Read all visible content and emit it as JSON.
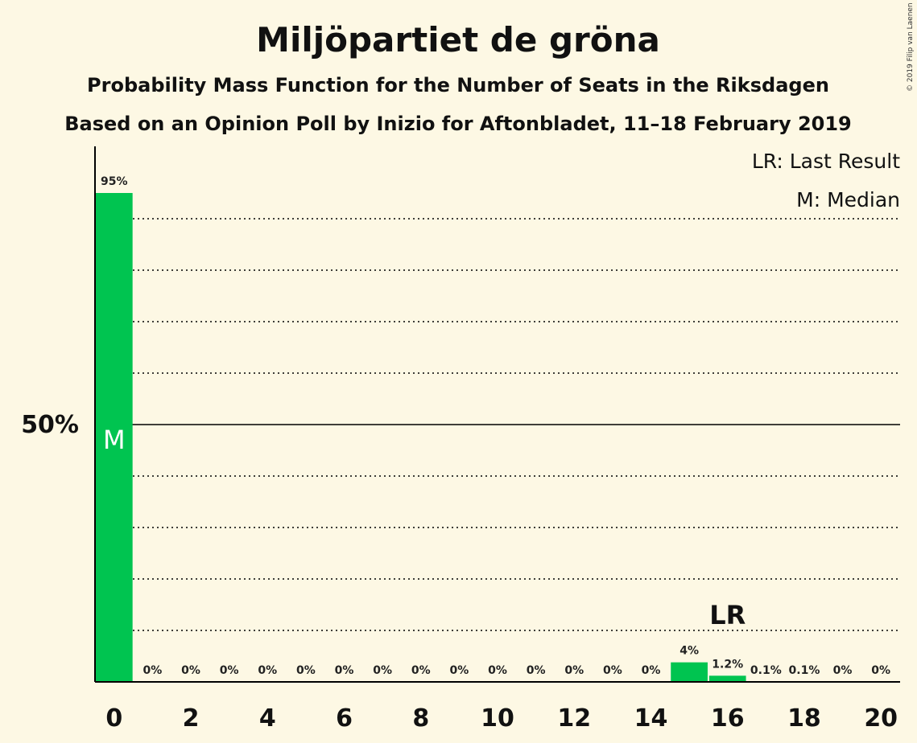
{
  "title": "Miljöpartiet de gröna",
  "subtitle": "Probability Mass Function for the Number of Seats in the Riksdagen",
  "subtitle2": "Based on an Opinion Poll by Inizio for Aftonbladet, 11–18 February 2019",
  "copyright": "© 2019 Filip van Laenen",
  "legend": {
    "last_result": "LR: Last Result",
    "median": "M: Median"
  },
  "colors": {
    "bar": "#00c450",
    "background": "#fdf8e4",
    "axis": "#000000"
  },
  "chart_data": {
    "type": "bar",
    "x": [
      0,
      1,
      2,
      3,
      4,
      5,
      6,
      7,
      8,
      9,
      10,
      11,
      12,
      13,
      14,
      15,
      16,
      17,
      18,
      19,
      20
    ],
    "values": [
      95,
      0,
      0,
      0,
      0,
      0,
      0,
      0,
      0,
      0,
      0,
      0,
      0,
      0,
      0,
      3.8,
      1.2,
      0.1,
      0.1,
      0,
      0
    ],
    "value_labels": [
      "95%",
      "0%",
      "0%",
      "0%",
      "0%",
      "0%",
      "0%",
      "0%",
      "0%",
      "0%",
      "0%",
      "0%",
      "0%",
      "0%",
      "0%",
      "4%",
      "1.2%",
      "0.1%",
      "0.1%",
      "0%",
      "0%"
    ],
    "x_tick_labels": [
      "0",
      "2",
      "4",
      "6",
      "8",
      "10",
      "12",
      "14",
      "16",
      "18",
      "20"
    ],
    "x_ticks": [
      0,
      2,
      4,
      6,
      8,
      10,
      12,
      14,
      16,
      18,
      20
    ],
    "y_tick_label": "50%",
    "y_tick_value": 50,
    "ylim": [
      0,
      103
    ],
    "gridlines": [
      10,
      20,
      30,
      40,
      60,
      70,
      80,
      90
    ],
    "median_seat": 0,
    "median_marker": "M",
    "last_result_seat": 16,
    "last_result_marker": "LR"
  }
}
